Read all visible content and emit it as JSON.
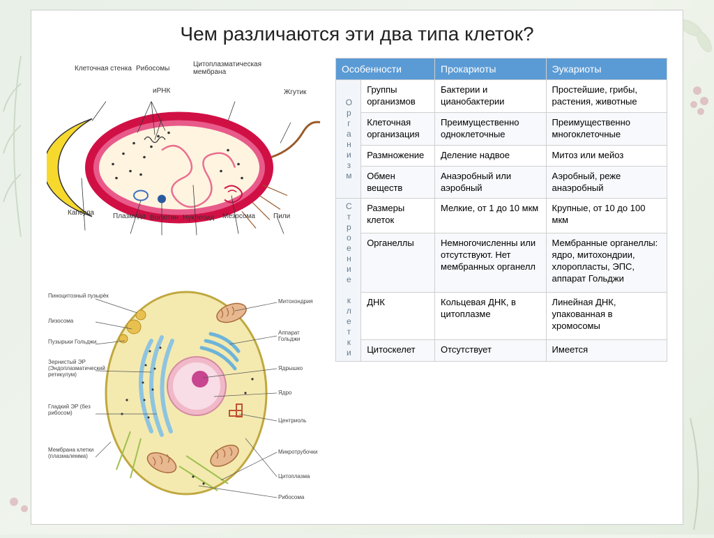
{
  "title": "Чем различаются эти два типа клеток?",
  "table": {
    "headers": [
      "Особенности",
      "Прокариоты",
      "Эукариоты"
    ],
    "groups": [
      {
        "label": "Организм",
        "rows": [
          {
            "feature": "Группы организмов",
            "pro": "Бактерии и цианобактерии",
            "euk": "Простейшие, грибы, растения, животные"
          },
          {
            "feature": "Клеточная организация",
            "pro": "Преимущественно одноклеточные",
            "euk": "Преимущественно многоклеточные"
          },
          {
            "feature": "Размножение",
            "pro": "Деление надвое",
            "euk": "Митоз или мейоз"
          },
          {
            "feature": "Обмен веществ",
            "pro": "Анаэробный или аэробный",
            "euk": "Аэробный, реже анаэробный"
          }
        ]
      },
      {
        "label": "Строение клетки",
        "rows": [
          {
            "feature": "Размеры клеток",
            "pro": "Мелкие, от 1 до 10 мкм",
            "euk": "Крупные, от 10 до 100 мкм"
          },
          {
            "feature": "Органеллы",
            "pro": "Немногочисленны или отсутствуют. Нет мембранных органелл",
            "euk": "Мембранные органеллы: ядро, митохондрии, хлоропласты, ЭПС, аппарат Гольджи"
          },
          {
            "feature": "ДНК",
            "pro": "Кольцевая ДНК, в цитоплазме",
            "euk": "Линейная ДНК, упакованная в хромосомы"
          },
          {
            "feature": "Цитоскелет",
            "pro": "Отсутствует",
            "euk": "Имеется"
          }
        ]
      }
    ],
    "header_bg": "#5b9bd5",
    "header_fg": "#ffffff",
    "border_color": "#cfcfcf",
    "alt_row_bg": "#f7f9fc",
    "font_size": 13
  },
  "prokaryote": {
    "labels": {
      "cell_wall": "Клеточная стенка",
      "ribosomes": "Рибосомы",
      "mrna": "иРНК",
      "plasma_membrane": "Цитоплазматическая мембрана",
      "flagellum": "Жгутик",
      "capsule": "Капсула",
      "plasmid": "Плазмида",
      "volutin": "Волютин",
      "nucleoid": "Нуклеоид",
      "mesosome": "Мезосома",
      "pili": "Пили"
    },
    "colors": {
      "capsule": "#f7d92e",
      "wall": "#d01045",
      "membrane": "#e85a8a",
      "cytoplasm": "#fef4e0",
      "nucleoid": "#e96f8f",
      "plasmid": "#3a6fc0",
      "volutin": "#2a5a9e",
      "flagellum": "#9b5a2a",
      "ribosome": "#333333"
    }
  },
  "eukaryote": {
    "labels": {
      "pinocytic_vesicle": "Пиноцитозный пузырёк",
      "lysosome": "Лизосома",
      "golgi_vesicles": "Пузырьки Гольджи",
      "rough_er": "Зернистый ЭР (Эндоплазматический ретикулум)",
      "smooth_er": "Гладкий ЭР (без рибосом)",
      "plasma_membrane": "Мембрана клетки (плазмалемма)",
      "mitochondrion": "Митохондрия",
      "golgi": "Аппарат Гольджи",
      "nucleolus": "Ядрышко",
      "nucleus": "Ядро",
      "centriole": "Центриоль",
      "microtubules": "Микротрубочки",
      "cytoplasm": "Цитоплазма",
      "ribosome": "Рибосома"
    },
    "colors": {
      "cytoplasm": "#f4eab0",
      "membrane": "#d4c060",
      "nucleus_outer": "#f0b8c8",
      "nucleus_inner": "#f8dce6",
      "nucleolus": "#c84590",
      "mitochondrion": "#d08a5a",
      "er": "#8ec4e0",
      "golgi": "#6fb4d8",
      "lysosome": "#e8c050",
      "centriole": "#c05030",
      "microtubule": "#a0c050"
    }
  }
}
